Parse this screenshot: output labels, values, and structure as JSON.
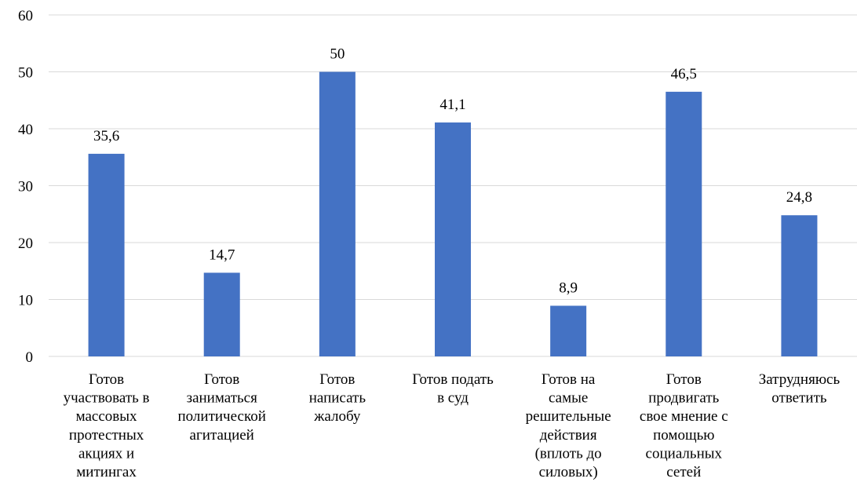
{
  "chart_data": {
    "type": "bar",
    "categories": [
      [
        "Готов",
        "участвовать в",
        "массовых",
        "протестных",
        "акциях и",
        "митингах"
      ],
      [
        "Готов",
        "заниматься",
        "политической",
        "агитацией"
      ],
      [
        "Готов",
        "написать",
        "жалобу"
      ],
      [
        "Готов подать",
        "в суд"
      ],
      [
        "Готов на",
        "самые",
        "решительные",
        "действия",
        "(вплоть до",
        "силовых)"
      ],
      [
        "Готов",
        "продвигать",
        "свое мнение с",
        "помощью",
        "социальных",
        "сетей"
      ],
      [
        "Затрудняюсь",
        "ответить"
      ]
    ],
    "values": [
      35.6,
      14.7,
      50,
      41.1,
      8.9,
      46.5,
      24.8
    ],
    "value_labels": [
      "35,6",
      "14,7",
      "50",
      "41,1",
      "8,9",
      "46,5",
      "24,8"
    ],
    "y_ticks": [
      "0",
      "10",
      "20",
      "30",
      "40",
      "50",
      "60"
    ],
    "ylim": [
      0,
      60
    ],
    "bar_color": "#4472c4",
    "grid": true,
    "legend": "none",
    "title": "",
    "xlabel": "",
    "ylabel": ""
  }
}
